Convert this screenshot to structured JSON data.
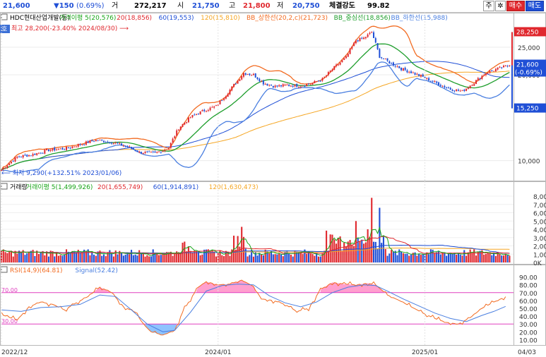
{
  "header": {
    "price": "21,600",
    "change": "▼150",
    "change_pct": "(0.69%)",
    "volume_label": "거",
    "volume": "272,217",
    "open_label": "시",
    "open": "21,750",
    "high_label": "고",
    "high": "21,800",
    "low_label": "저",
    "low": "20,750",
    "strength_label": "체결강도",
    "strength": "99.82",
    "btn_main": "주",
    "btn_gear": "✲",
    "btn_buy": "매수",
    "btn_sell": "매도",
    "colors": {
      "up": "#e0282e",
      "down": "#1f4fd6"
    }
  },
  "chart_data": [
    {
      "type": "candlestick",
      "legend": [
        {
          "text": "HDC현대산업개발(등)",
          "color": "#000000"
        },
        {
          "text": "가격이평 5(20,576)",
          "color": "#19a519"
        },
        {
          "text": "20(18,856)",
          "color": "#e0282e"
        },
        {
          "text": "60(19,553)",
          "color": "#1f4fd6"
        },
        {
          "text": "120(15,810)",
          "color": "#f5a623"
        },
        {
          "text": "BB_상한선(20,2,c)(21,723)",
          "color": "#f26b21"
        },
        {
          "text": "BB_중심선(18,856)",
          "color": "#1e9e2c"
        },
        {
          "text": "BB_하한선(15,988)",
          "color": "#4a7fe0"
        }
      ],
      "side_tag": "호",
      "y_ticks": [
        "25,000",
        "20,000",
        "10,000"
      ],
      "y_scale": "log",
      "y_range": [
        8800,
        30500
      ],
      "max_annotation": "최고 28,200(-23.40% 2024/08/30)",
      "min_annotation": "최저 9,290(+132.51% 2023/01/06)",
      "right_tags": {
        "high": "28,250",
        "current": "21,600",
        "current_change": "(-0.69%)",
        "low": "15,250"
      },
      "points": [
        [
          0,
          9290
        ],
        [
          8,
          10300
        ],
        [
          16,
          10500
        ],
        [
          24,
          10900
        ],
        [
          32,
          11000
        ],
        [
          40,
          11400
        ],
        [
          48,
          11800
        ],
        [
          56,
          11600
        ],
        [
          64,
          11200
        ],
        [
          70,
          10700
        ],
        [
          78,
          10600
        ],
        [
          85,
          11100
        ],
        [
          90,
          13000
        ],
        [
          96,
          14200
        ],
        [
          103,
          15000
        ],
        [
          109,
          15500
        ],
        [
          114,
          17000
        ],
        [
          120,
          19100
        ],
        [
          123,
          20300
        ],
        [
          128,
          20000
        ],
        [
          133,
          18700
        ],
        [
          139,
          18200
        ],
        [
          145,
          18400
        ],
        [
          151,
          18300
        ],
        [
          157,
          18600
        ],
        [
          163,
          19300
        ],
        [
          169,
          21200
        ],
        [
          175,
          23000
        ],
        [
          180,
          26400
        ],
        [
          184,
          26900
        ],
        [
          188,
          28200
        ],
        [
          192,
          23200
        ],
        [
          197,
          22100
        ],
        [
          203,
          21000
        ],
        [
          209,
          20300
        ],
        [
          215,
          19500
        ],
        [
          221,
          18700
        ],
        [
          228,
          17800
        ],
        [
          234,
          17500
        ],
        [
          240,
          18800
        ],
        [
          246,
          20300
        ],
        [
          252,
          21000
        ],
        [
          258,
          21600
        ]
      ],
      "last_x": 258
    },
    {
      "type": "bar",
      "legend": [
        {
          "text": "거래량",
          "color": "#000000"
        },
        {
          "text": "거래이평 5(1,499,926)",
          "color": "#19a519"
        },
        {
          "text": "20(1,655,749)",
          "color": "#e0282e"
        },
        {
          "text": "60(1,914,891)",
          "color": "#1f4fd6"
        },
        {
          "text": "120(1,630,473)",
          "color": "#f5a623"
        }
      ],
      "y_ticks": [
        "8,000K",
        "7,000K",
        "6,000K",
        "5,000K",
        "4,000K",
        "3,000K",
        "2,000K",
        "1,000K",
        "0K"
      ],
      "y_range": [
        0,
        8600000
      ]
    },
    {
      "type": "line",
      "legend": [
        {
          "text": "RSI(14,9)(64.81)",
          "color": "#f26b21"
        },
        {
          "text": "Signal(52.42)",
          "color": "#4a7fe0"
        }
      ],
      "y_ticks": [
        "90.00",
        "80.00",
        "70.00",
        "60.00",
        "50.00",
        "40.00",
        "30.00",
        "20.00",
        "10.00"
      ],
      "y_range": [
        5,
        95
      ],
      "ref_lines": [
        {
          "value": 70,
          "label": "70.00"
        },
        {
          "value": 30,
          "label": "30.00"
        }
      ],
      "rsi_points": [
        [
          0,
          42
        ],
        [
          8,
          35
        ],
        [
          14,
          52
        ],
        [
          20,
          58
        ],
        [
          26,
          55
        ],
        [
          32,
          48
        ],
        [
          38,
          57
        ],
        [
          44,
          65
        ],
        [
          50,
          77
        ],
        [
          56,
          70
        ],
        [
          62,
          52
        ],
        [
          68,
          45
        ],
        [
          72,
          30
        ],
        [
          76,
          20
        ],
        [
          82,
          16
        ],
        [
          88,
          22
        ],
        [
          92,
          45
        ],
        [
          96,
          62
        ],
        [
          100,
          77
        ],
        [
          104,
          84
        ],
        [
          110,
          80
        ],
        [
          116,
          81
        ],
        [
          122,
          86
        ],
        [
          128,
          78
        ],
        [
          132,
          62
        ],
        [
          138,
          60
        ],
        [
          144,
          55
        ],
        [
          150,
          46
        ],
        [
          156,
          50
        ],
        [
          162,
          74
        ],
        [
          168,
          83
        ],
        [
          174,
          81
        ],
        [
          180,
          80
        ],
        [
          186,
          82
        ],
        [
          190,
          80
        ],
        [
          196,
          67
        ],
        [
          202,
          60
        ],
        [
          208,
          52
        ],
        [
          214,
          44
        ],
        [
          220,
          37
        ],
        [
          226,
          32
        ],
        [
          232,
          30
        ],
        [
          238,
          38
        ],
        [
          244,
          50
        ],
        [
          250,
          58
        ],
        [
          256,
          64.81
        ]
      ],
      "signal_points": [
        [
          0,
          48
        ],
        [
          10,
          46
        ],
        [
          20,
          51
        ],
        [
          30,
          52
        ],
        [
          40,
          55
        ],
        [
          50,
          67
        ],
        [
          58,
          65
        ],
        [
          66,
          48
        ],
        [
          74,
          30
        ],
        [
          82,
          20
        ],
        [
          88,
          22
        ],
        [
          96,
          45
        ],
        [
          104,
          72
        ],
        [
          112,
          79
        ],
        [
          120,
          81
        ],
        [
          128,
          80
        ],
        [
          136,
          66
        ],
        [
          144,
          57
        ],
        [
          152,
          52
        ],
        [
          160,
          58
        ],
        [
          168,
          70
        ],
        [
          176,
          77
        ],
        [
          184,
          80
        ],
        [
          190,
          79
        ],
        [
          196,
          72
        ],
        [
          204,
          62
        ],
        [
          212,
          53
        ],
        [
          220,
          44
        ],
        [
          228,
          37
        ],
        [
          236,
          33
        ],
        [
          244,
          41
        ],
        [
          250,
          46
        ],
        [
          256,
          52.42
        ]
      ]
    }
  ],
  "x_axis": {
    "ticks": [
      {
        "label": "2022/12",
        "x": 0
      },
      {
        "label": "2024/01",
        "x": 110
      },
      {
        "label": "2025/01",
        "x": 215
      },
      {
        "label": "04/03",
        "x": 260
      }
    ],
    "x_range": [
      0,
      260
    ]
  }
}
